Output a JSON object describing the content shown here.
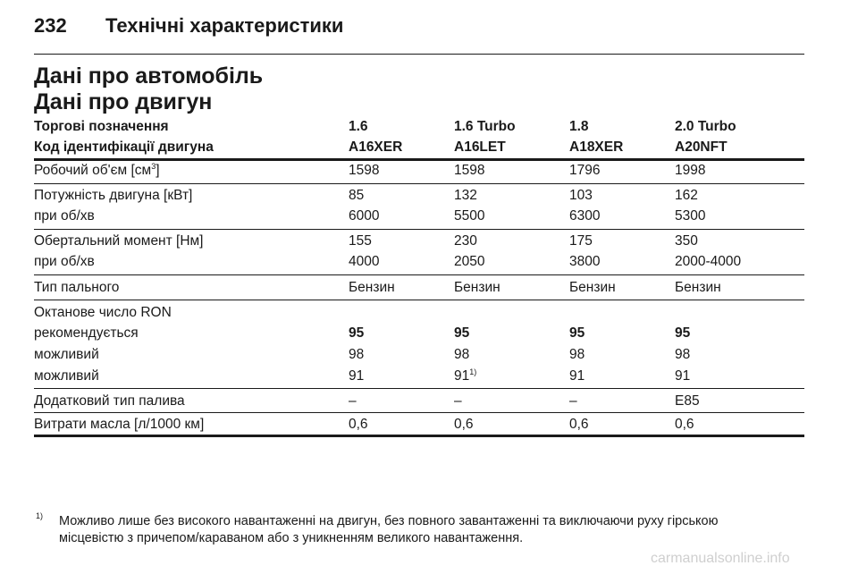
{
  "header": {
    "page_number": "232",
    "section_title": "Технічні характеристики"
  },
  "headings": {
    "h1": "Дані про автомобіль",
    "h2": "Дані про двигун"
  },
  "table": {
    "header_rows": [
      {
        "label": "Торгові позначення",
        "values": [
          "1.6",
          "1.6 Turbo",
          "1.8",
          "2.0 Turbo"
        ]
      },
      {
        "label": "Код ідентифікації двигуна",
        "values": [
          "A16XER",
          "A16LET",
          "A18XER",
          "A20NFT"
        ]
      }
    ],
    "displacement": {
      "label": "Робочий об'єм [см",
      "label_sup": "3",
      "label_end": "]",
      "values": [
        "1598",
        "1598",
        "1796",
        "1998"
      ]
    },
    "power": {
      "label": "Потужність двигуна [кВт]",
      "values": [
        "85",
        "132",
        "103",
        "162"
      ]
    },
    "power_rpm": {
      "label": "при об/хв",
      "values": [
        "6000",
        "5500",
        "6300",
        "5300"
      ]
    },
    "torque": {
      "label": "Обертальний момент [Нм]",
      "values": [
        "155",
        "230",
        "175",
        "350"
      ]
    },
    "torque_rpm": {
      "label": "при об/хв",
      "values": [
        "4000",
        "2050",
        "3800",
        "2000-4000"
      ]
    },
    "fuel_type": {
      "label": "Тип пального",
      "values": [
        "Бензин",
        "Бензин",
        "Бензин",
        "Бензин"
      ]
    },
    "octane": {
      "label": "Октанове число RON"
    },
    "recommended": {
      "label": "рекомендується",
      "values": [
        "95",
        "95",
        "95",
        "95"
      ]
    },
    "possible1": {
      "label": "можливий",
      "values": [
        "98",
        "98",
        "98",
        "98"
      ]
    },
    "possible2": {
      "label": "можливий",
      "values": [
        "91",
        "91",
        "91",
        "91"
      ],
      "sup2": "1)"
    },
    "additional_fuel": {
      "label": "Додатковий тип палива",
      "values": [
        "–",
        "–",
        "–",
        "E85"
      ]
    },
    "oil": {
      "label": "Витрати масла [л/1000 км]",
      "values": [
        "0,6",
        "0,6",
        "0,6",
        "0,6"
      ]
    }
  },
  "footnote": {
    "mark": "1)",
    "line1": "Можливо лише без високого навантаженні на двигун, без повного завантаженні та виключаючи руху гірською",
    "line2": "місцевістю з причепом/караваном або з уникненням великого навантаження."
  },
  "watermark": "carmanualsonline.info"
}
